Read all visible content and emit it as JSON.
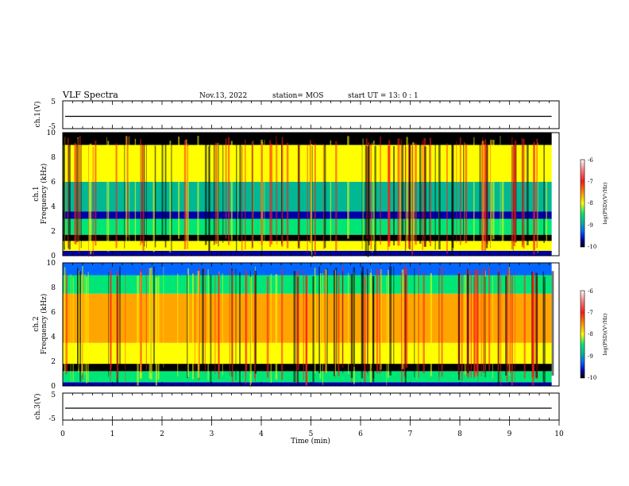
{
  "header": {
    "title": "VLF Spectra",
    "date": "Nov.13, 2022",
    "station": "station= MOS",
    "start": "start  UT =   13: 0  : 1"
  },
  "colors": {
    "colormap": [
      "#ffffff",
      "#ff7777",
      "#ff1a1a",
      "#ffa500",
      "#ffff00",
      "#00e676",
      "#00b894",
      "#0066ff",
      "#0000aa",
      "#000000"
    ],
    "trace": "#000000"
  },
  "chart_data": [
    {
      "type": "line",
      "panel": "ch1-waveform",
      "ylabel": "ch.1(V)",
      "ylim": [
        -5,
        5
      ],
      "yticks": [
        "5",
        "-5"
      ],
      "x": [
        0,
        9.85
      ],
      "y": [
        0,
        0
      ]
    },
    {
      "type": "heatmap",
      "panel": "ch1-spectrogram",
      "ylabel": "ch.1\nFrequency (kHz)",
      "ylim": [
        0,
        10
      ],
      "yticks": [
        "0",
        "2",
        "4",
        "6",
        "8",
        "10"
      ],
      "xlim": [
        0,
        9.85
      ],
      "colorbar": {
        "label": "log(PSD)(V²/Hz)",
        "range": [
          -10,
          -6
        ],
        "ticks": [
          "-6",
          "-7",
          "-8",
          "-9",
          "-10"
        ]
      },
      "bands_khz": [
        {
          "from": 0.0,
          "to": 0.4,
          "log_psd": -9.6
        },
        {
          "from": 0.4,
          "to": 1.2,
          "log_psd": -7.8
        },
        {
          "from": 1.2,
          "to": 1.7,
          "log_psd": -9.9
        },
        {
          "from": 1.7,
          "to": 3.0,
          "log_psd": -8.4
        },
        {
          "from": 3.0,
          "to": 3.6,
          "log_psd": -9.4
        },
        {
          "from": 3.6,
          "to": 6.0,
          "log_psd": -8.5
        },
        {
          "from": 6.0,
          "to": 9.0,
          "log_psd": -7.9
        },
        {
          "from": 9.0,
          "to": 10.0,
          "log_psd": -9.9
        }
      ]
    },
    {
      "type": "heatmap",
      "panel": "ch2-spectrogram",
      "ylabel": "ch.2\nFrequency (kHz)",
      "ylim": [
        0,
        10
      ],
      "yticks": [
        "0",
        "2",
        "4",
        "6",
        "8",
        "10"
      ],
      "xlim": [
        0,
        9.85
      ],
      "colorbar": {
        "label": "log(PSD)(V²/Hz)",
        "range": [
          -10,
          -6
        ],
        "ticks": [
          "-6",
          "-7",
          "-8",
          "-9",
          "-10"
        ]
      },
      "bands_khz": [
        {
          "from": 0.0,
          "to": 0.3,
          "log_psd": -9.7
        },
        {
          "from": 0.3,
          "to": 1.2,
          "log_psd": -8.2
        },
        {
          "from": 1.2,
          "to": 1.8,
          "log_psd": -9.9
        },
        {
          "from": 1.8,
          "to": 3.5,
          "log_psd": -7.8
        },
        {
          "from": 3.5,
          "to": 7.5,
          "log_psd": -7.2
        },
        {
          "from": 7.5,
          "to": 9.0,
          "log_psd": -8.0
        },
        {
          "from": 9.0,
          "to": 10.0,
          "log_psd": -9.3
        }
      ]
    },
    {
      "type": "line",
      "panel": "ch3-waveform",
      "ylabel": "ch.3(V)",
      "ylim": [
        -5,
        5
      ],
      "yticks": [
        "5",
        "-5"
      ],
      "x": [
        0,
        9.85
      ],
      "y": [
        0,
        0
      ]
    }
  ],
  "xaxis": {
    "label": "Time (min)",
    "xlim": [
      0,
      10
    ],
    "ticks": [
      "0",
      "1",
      "2",
      "3",
      "4",
      "5",
      "6",
      "7",
      "8",
      "9",
      "10"
    ]
  }
}
